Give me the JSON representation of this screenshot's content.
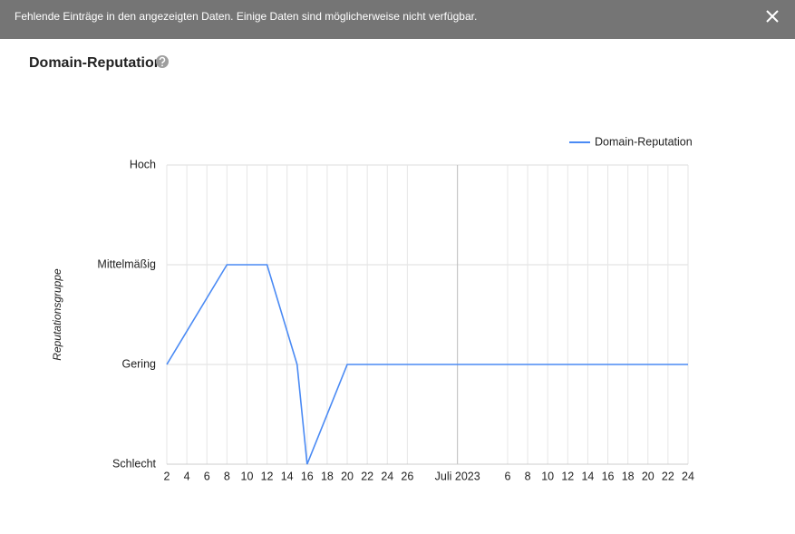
{
  "banner": {
    "message": "Fehlende Einträge in den angezeigten Daten. Einige Daten sind möglicherweise nicht verfügbar."
  },
  "chart_data": {
    "type": "line",
    "title": "Domain-Reputation",
    "y_label": "Reputationsgruppe",
    "x": [
      "2023-06-02",
      "2023-06-08",
      "2023-06-12",
      "2023-06-15",
      "2023-06-16",
      "2023-06-20",
      "2023-07-24"
    ],
    "series": [
      {
        "name": "Domain-Reputation",
        "color": "#4a8af4",
        "values": [
          1,
          2,
          2,
          1,
          0,
          1,
          1
        ]
      }
    ],
    "xlim": [
      "2023-06-02",
      "2023-07-24"
    ],
    "xticks": [
      {
        "value": "2023-06-02",
        "label": "2"
      },
      {
        "value": "2023-06-04",
        "label": "4"
      },
      {
        "value": "2023-06-06",
        "label": "6"
      },
      {
        "value": "2023-06-08",
        "label": "8"
      },
      {
        "value": "2023-06-10",
        "label": "10"
      },
      {
        "value": "2023-06-12",
        "label": "12"
      },
      {
        "value": "2023-06-14",
        "label": "14"
      },
      {
        "value": "2023-06-16",
        "label": "16"
      },
      {
        "value": "2023-06-18",
        "label": "18"
      },
      {
        "value": "2023-06-20",
        "label": "20"
      },
      {
        "value": "2023-06-22",
        "label": "22"
      },
      {
        "value": "2023-06-24",
        "label": "24"
      },
      {
        "value": "2023-06-26",
        "label": "26"
      },
      {
        "value": "2023-07-01",
        "label": "Juli 2023"
      },
      {
        "value": "2023-07-06",
        "label": "6"
      },
      {
        "value": "2023-07-08",
        "label": "8"
      },
      {
        "value": "2023-07-10",
        "label": "10"
      },
      {
        "value": "2023-07-12",
        "label": "12"
      },
      {
        "value": "2023-07-14",
        "label": "14"
      },
      {
        "value": "2023-07-16",
        "label": "16"
      },
      {
        "value": "2023-07-18",
        "label": "18"
      },
      {
        "value": "2023-07-20",
        "label": "20"
      },
      {
        "value": "2023-07-22",
        "label": "22"
      },
      {
        "value": "2023-07-24",
        "label": "24"
      }
    ],
    "ylim": [
      0,
      3
    ],
    "yticks": [
      {
        "value": 0,
        "label": "Schlecht"
      },
      {
        "value": 1,
        "label": "Gering"
      },
      {
        "value": 2,
        "label": "Mittelmäßig"
      },
      {
        "value": 3,
        "label": "Hoch"
      }
    ],
    "grid": true,
    "legend": "top-right"
  }
}
